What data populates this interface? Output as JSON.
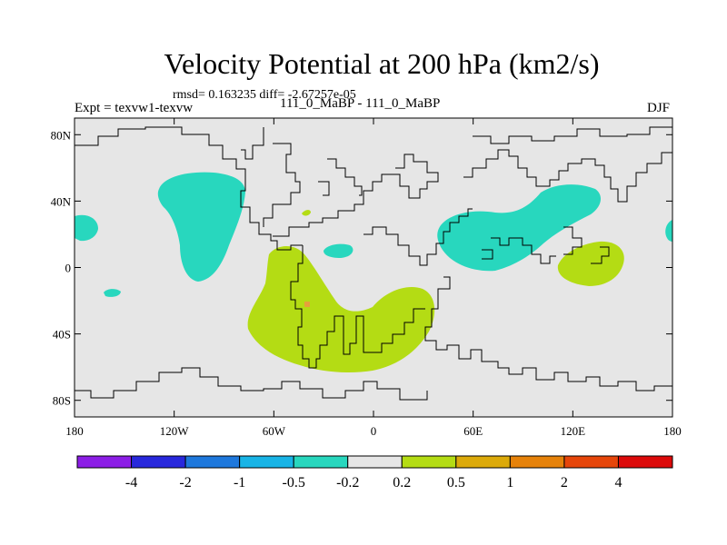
{
  "title": "Velocity Potential at 200 hPa (km2/s)",
  "stats": "rmsd= 0.163235 diff= -2.67257e-05",
  "expt": "Expt = texvw1-texvw",
  "runs": "111_0_MaBP - 111_0_MaBP",
  "season": "DJF",
  "map": {
    "lon_range": [
      -180,
      180
    ],
    "lat_range": [
      -90,
      90
    ],
    "background_color": "#e6e6e6",
    "lat_ticks": [
      {
        "value": 80,
        "label": "80N"
      },
      {
        "value": 40,
        "label": "40N"
      },
      {
        "value": 0,
        "label": "0"
      },
      {
        "value": -40,
        "label": "40S"
      },
      {
        "value": -80,
        "label": "80S"
      }
    ],
    "lon_ticks": [
      {
        "value": -180,
        "label": "180"
      },
      {
        "value": -120,
        "label": "120W"
      },
      {
        "value": -60,
        "label": "60W"
      },
      {
        "value": 0,
        "label": "0"
      },
      {
        "value": 60,
        "label": "60E"
      },
      {
        "value": 120,
        "label": "120E"
      },
      {
        "value": 180,
        "label": "180"
      }
    ]
  },
  "colorbar": {
    "colors": [
      "#8c1ee6",
      "#2828dc",
      "#1e78dc",
      "#18b4e6",
      "#28d7be",
      "#e6e6e6",
      "#b4dc14",
      "#dcaa0a",
      "#e6820a",
      "#e6460a",
      "#dc0a0a"
    ],
    "labels": [
      "-4",
      "-2",
      "-1",
      "-0.5",
      "-0.2",
      "0.2",
      "0.5",
      "1",
      "2",
      "4"
    ]
  },
  "anomaly_colors": {
    "negative": "#28d7be",
    "positive": "#b4dc14",
    "strong_positive": "#e6a03c"
  }
}
